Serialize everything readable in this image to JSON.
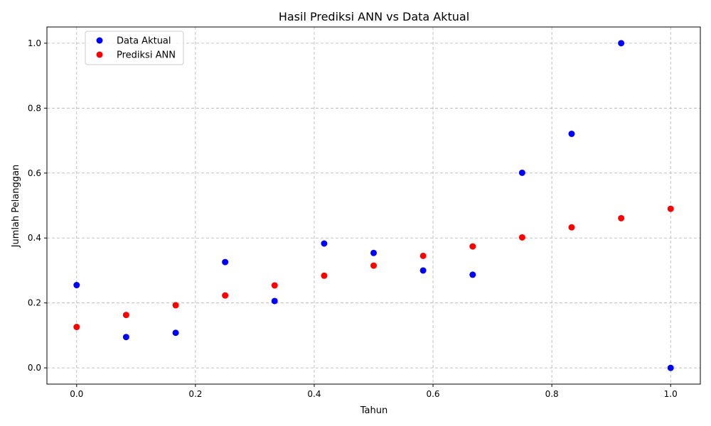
{
  "chart_data": {
    "type": "scatter",
    "title": "Hasil Prediksi ANN vs Data Aktual",
    "xlabel": "Tahun",
    "ylabel": "Jumlah Pelanggan",
    "xlim": [
      -0.05,
      1.05
    ],
    "ylim": [
      -0.05,
      1.05
    ],
    "xticks": [
      "0.0",
      "0.2",
      "0.4",
      "0.6",
      "0.8",
      "1.0"
    ],
    "yticks": [
      "0.0",
      "0.2",
      "0.4",
      "0.6",
      "0.8",
      "1.0"
    ],
    "grid": true,
    "legend_position": "top-left",
    "series": [
      {
        "name": "Data Aktual",
        "color": "#0000ff",
        "x": [
          0.0,
          0.0833,
          0.1667,
          0.25,
          0.3333,
          0.4167,
          0.5,
          0.5833,
          0.6667,
          0.75,
          0.8333,
          0.9167,
          1.0
        ],
        "y": [
          0.255,
          0.095,
          0.108,
          0.326,
          0.206,
          0.383,
          0.354,
          0.3,
          0.287,
          0.601,
          0.721,
          1.0,
          0.0
        ]
      },
      {
        "name": "Prediksi ANN",
        "color": "#ff0000",
        "x": [
          0.0,
          0.0833,
          0.1667,
          0.25,
          0.3333,
          0.4167,
          0.5,
          0.5833,
          0.6667,
          0.75,
          0.8333,
          0.9167,
          1.0
        ],
        "y": [
          0.126,
          0.163,
          0.193,
          0.223,
          0.254,
          0.284,
          0.315,
          0.345,
          0.374,
          0.402,
          0.433,
          0.461,
          0.49
        ]
      }
    ]
  }
}
